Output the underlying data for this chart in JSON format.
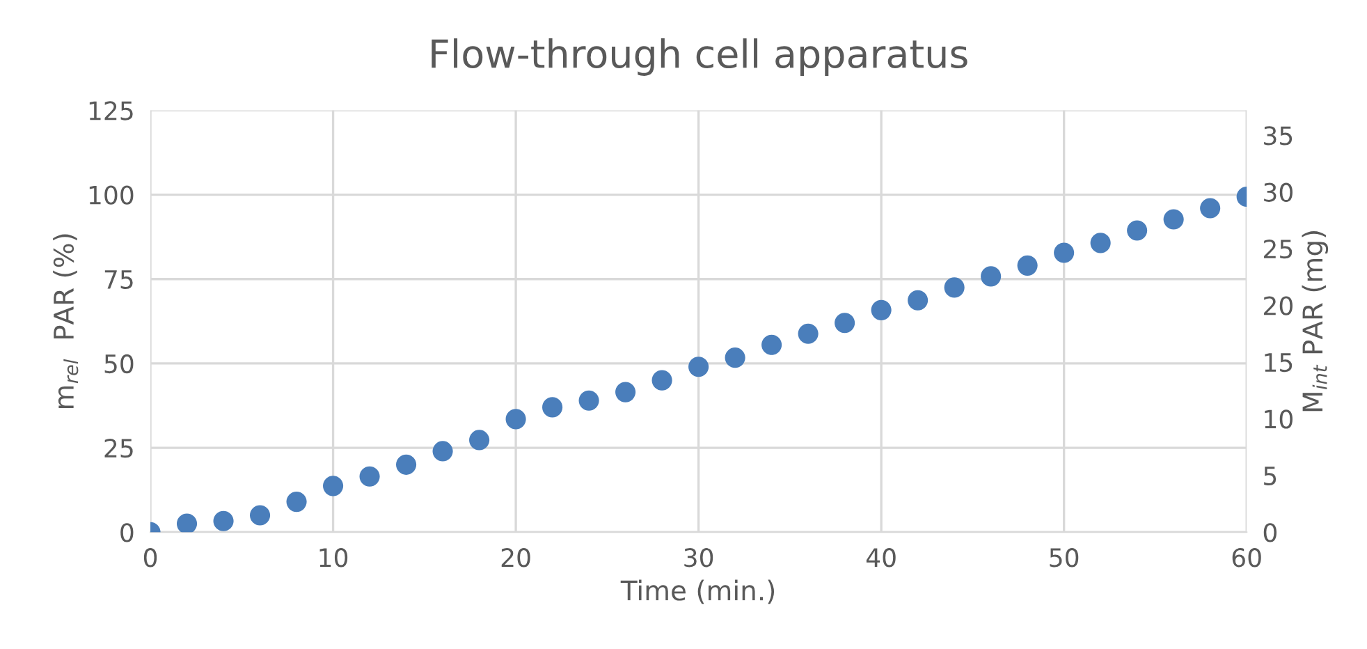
{
  "chart_data": {
    "type": "scatter",
    "title": "Flow-through cell apparatus",
    "xlabel": "Time (min.)",
    "ylabel": "m$_{rel}$  PAR (%)",
    "y2label": "M$_{int}$ PAR (mg)",
    "x": [
      0,
      2,
      4,
      6,
      8,
      10,
      12,
      14,
      16,
      18,
      20,
      22,
      24,
      26,
      28,
      30,
      32,
      34,
      36,
      38,
      40,
      42,
      44,
      46,
      48,
      50,
      52,
      54,
      56,
      58,
      60
    ],
    "series": [
      {
        "color": "#4a7ebb",
        "values": [
          0,
          2.5,
          3.3,
          5,
          9,
          13.7,
          16.5,
          20,
          24,
          27.3,
          33.5,
          37,
          39,
          41.5,
          45,
          49,
          51.7,
          55.5,
          58.8,
          62,
          65.8,
          68.7,
          72.5,
          75.8,
          79,
          82.8,
          85.7,
          89.4,
          92.7,
          96,
          99.4
        ]
      }
    ],
    "xlim": [
      0,
      60
    ],
    "xticks": [
      0,
      10,
      20,
      30,
      40,
      50,
      60
    ],
    "ylim": [
      0,
      125
    ],
    "yticks": [
      0,
      25,
      50,
      75,
      100,
      125
    ],
    "y2lim": [
      0,
      37.2
    ],
    "y2ticks": [
      0,
      5,
      10,
      15,
      20,
      25,
      30,
      35
    ],
    "grid": true,
    "marker": "circle",
    "legend": false
  }
}
